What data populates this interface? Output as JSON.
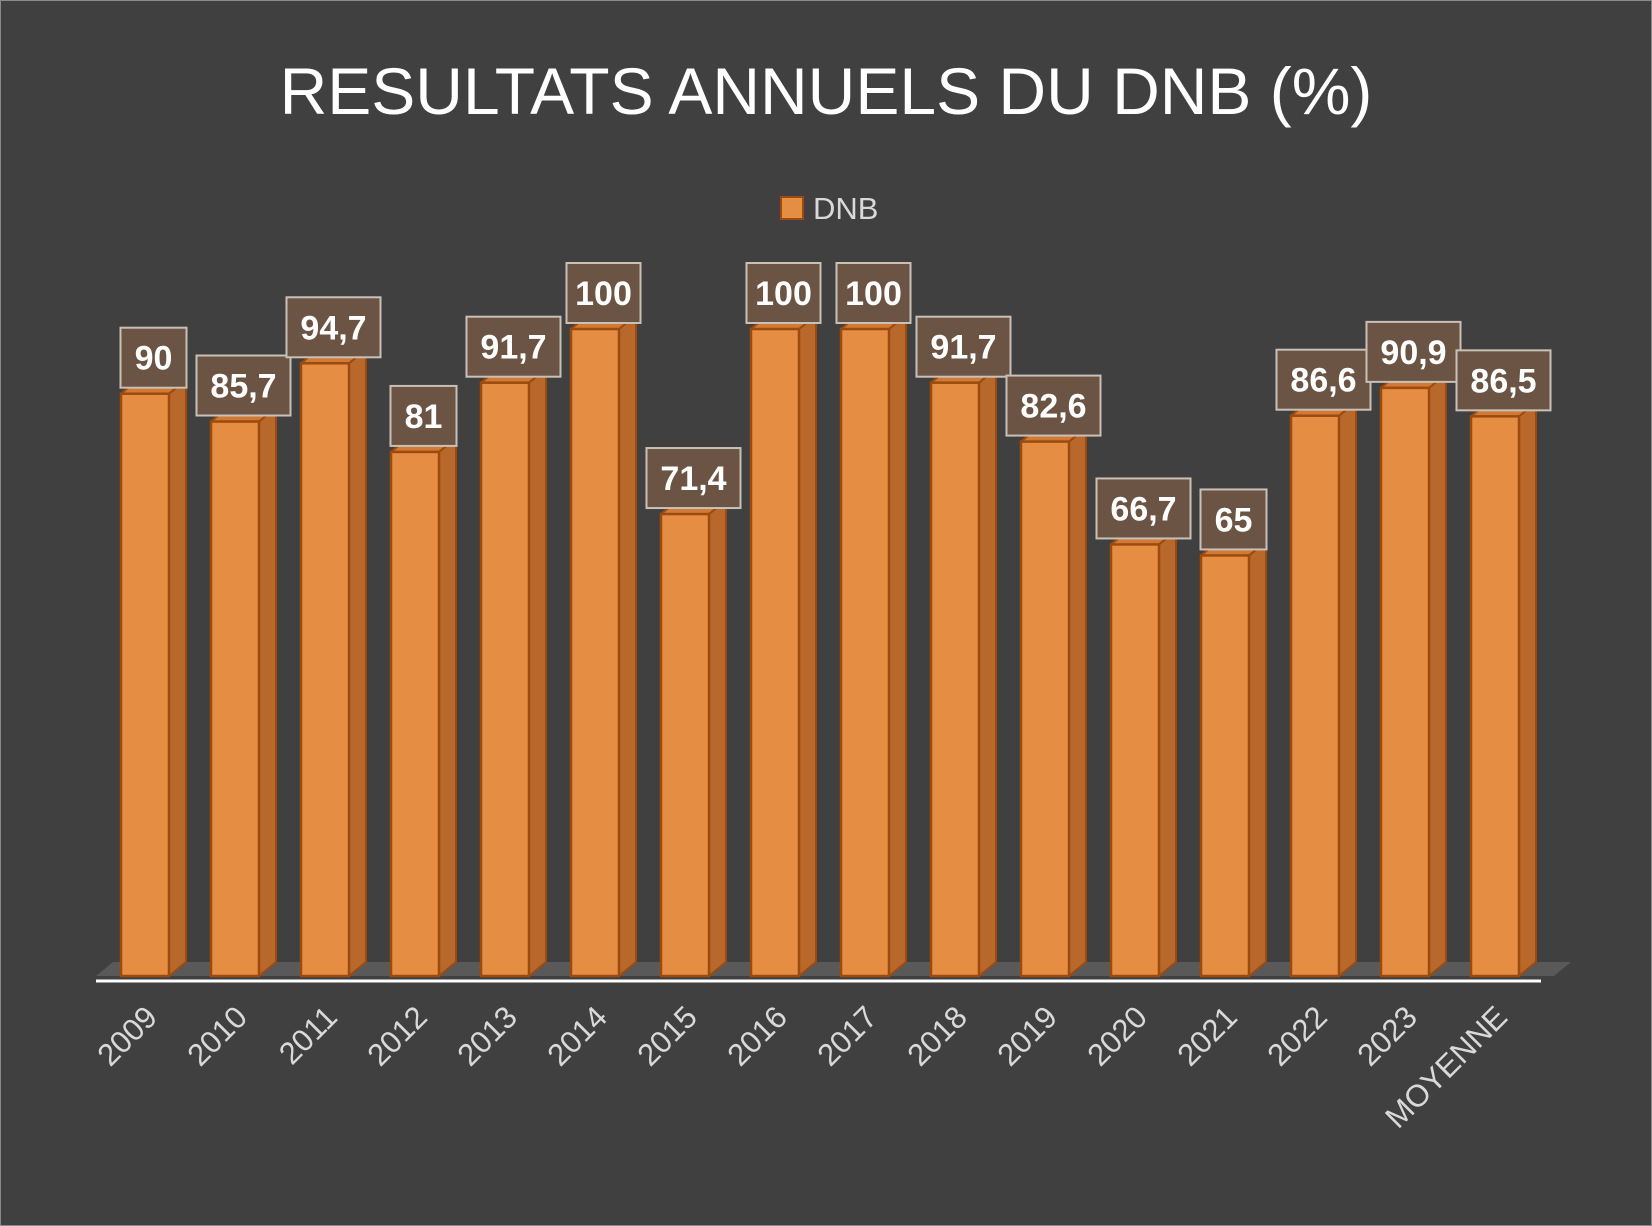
{
  "chart_data": {
    "type": "bar",
    "title": "RESULTATS ANNUELS DU DNB (%)",
    "legend": {
      "label": "DNB",
      "placement": "top-center"
    },
    "categories": [
      "2009",
      "2010",
      "2011",
      "2012",
      "2013",
      "2014",
      "2015",
      "2016",
      "2017",
      "2018",
      "2019",
      "2020",
      "2021",
      "2022",
      "2023",
      "MOYENNE"
    ],
    "series": [
      {
        "name": "DNB",
        "values": [
          90,
          85.7,
          94.7,
          81,
          91.7,
          100,
          71.4,
          100,
          100,
          91.7,
          82.6,
          66.7,
          65,
          86.6,
          90.9,
          86.5
        ],
        "labels": [
          "90",
          "85,7",
          "94,7",
          "81",
          "91,7",
          "100",
          "71,4",
          "100",
          "100",
          "91,7",
          "82,6",
          "66,7",
          "65",
          "86,6",
          "90,9",
          "86,5"
        ]
      }
    ],
    "ylim": [
      0,
      100
    ],
    "xlabel": "",
    "ylabel": "",
    "grid": false,
    "style": "3d-column",
    "colors": {
      "background": "#404040",
      "bar_front": "#E58D43",
      "bar_side": "#B8682A",
      "bar_top": "#D07A35",
      "bar_outline": "#9C4A0E",
      "label_box": "#6B5444",
      "label_border": "#C9C0B8",
      "text": "#FFFFFF",
      "axis_text": "#D9D9D9",
      "floor": "#595959",
      "baseline": "#FFFFFF"
    }
  }
}
